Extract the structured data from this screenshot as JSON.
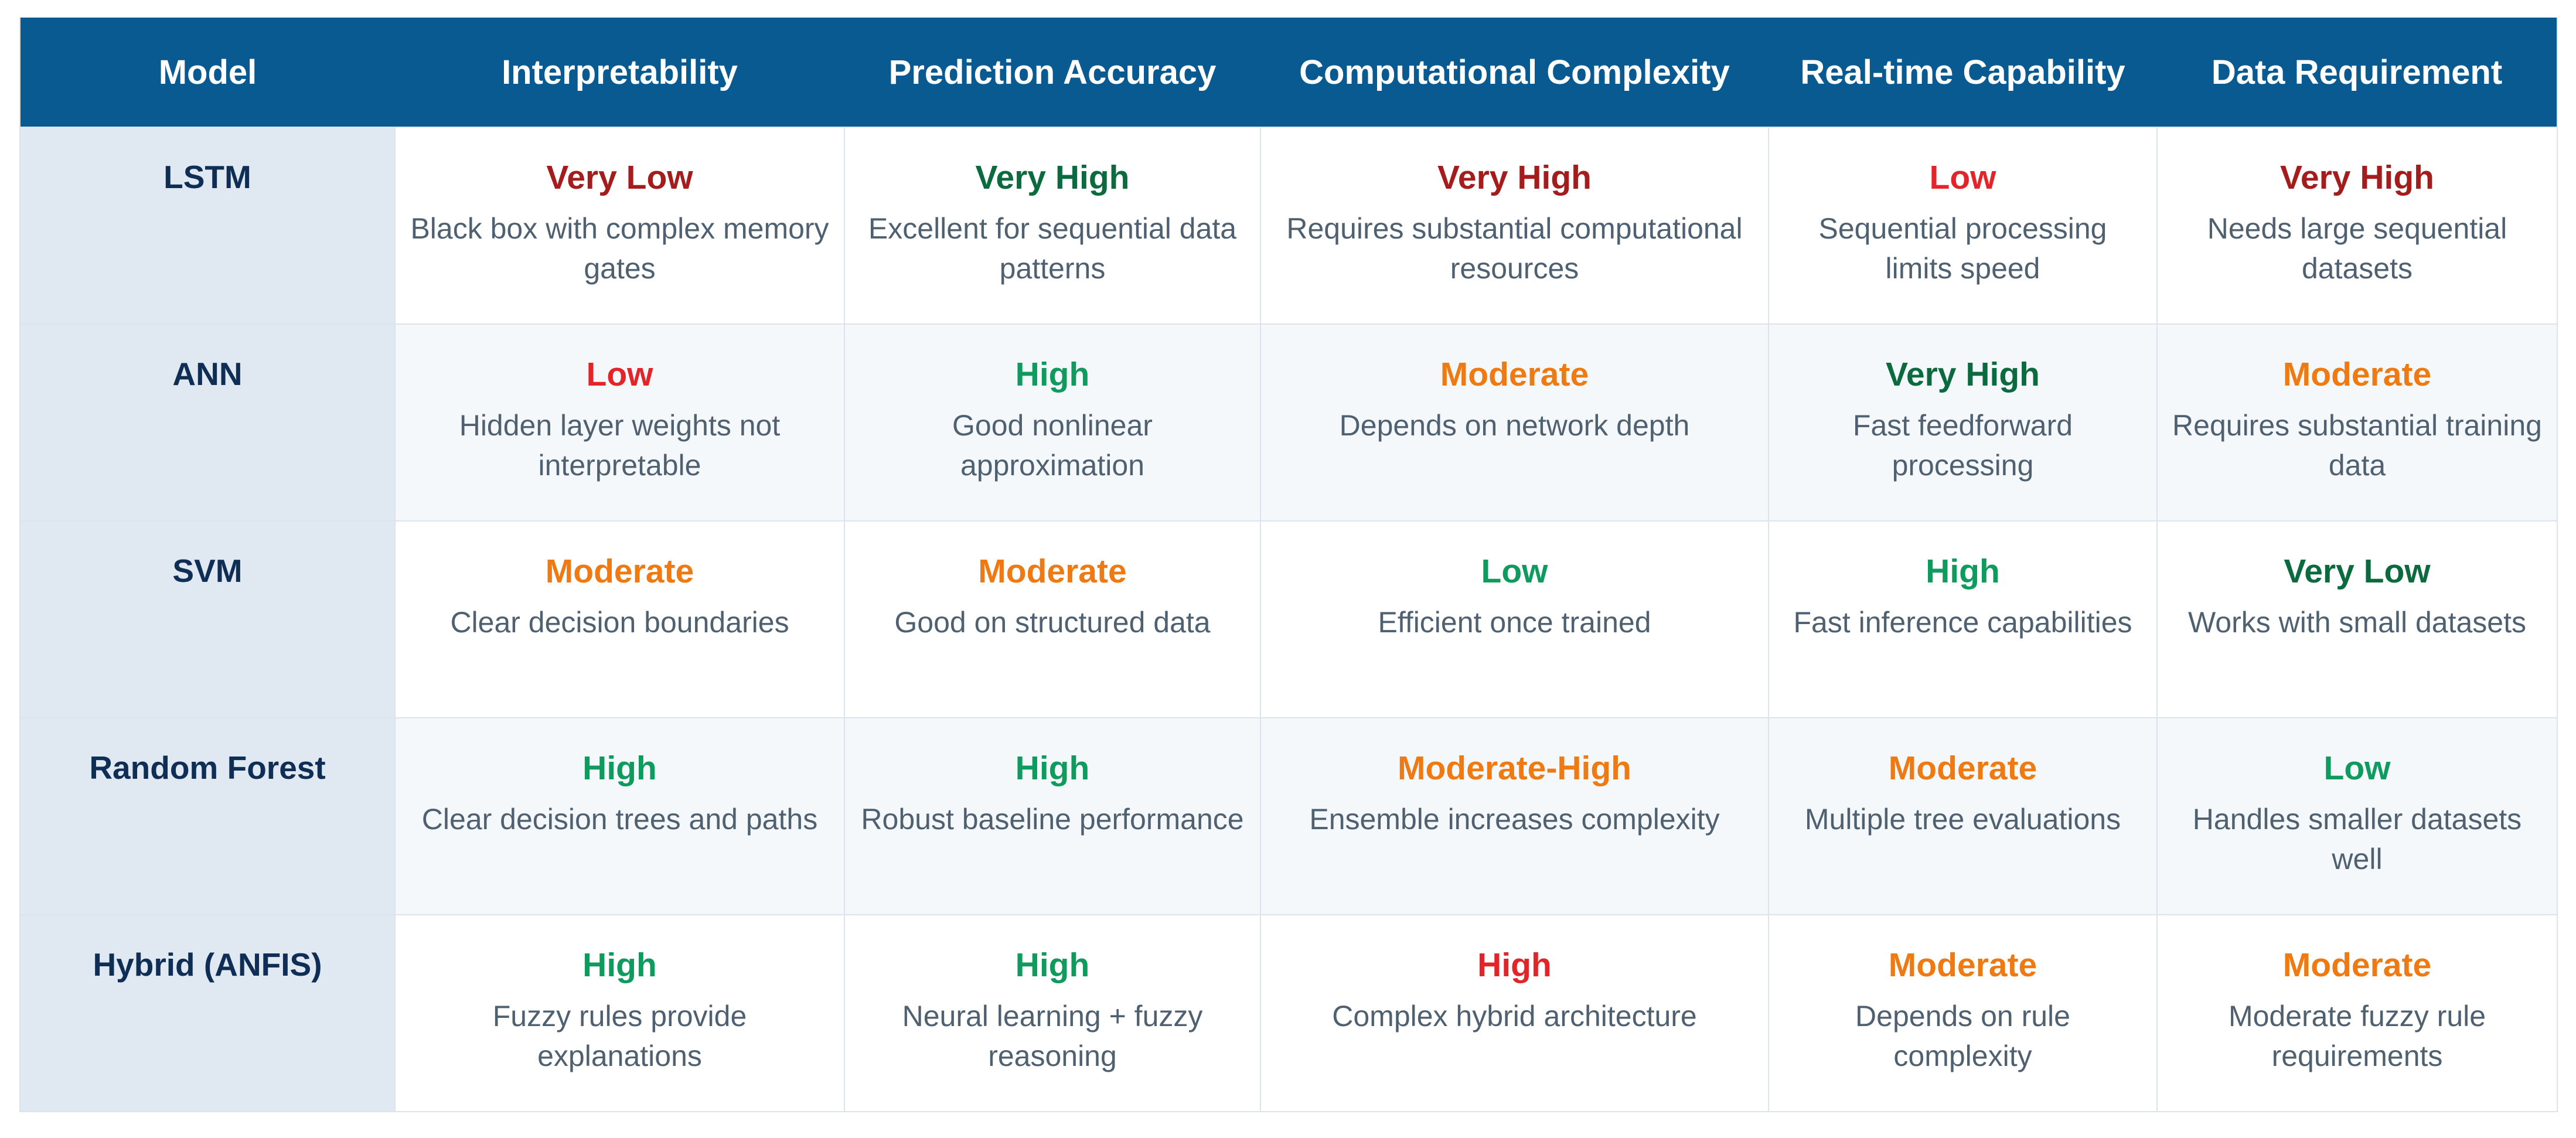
{
  "colors": {
    "header_bg": "#0a5a92",
    "model_col_bg": "#e0e8f1",
    "very_low": "#a51c1c",
    "low": "#e5242a",
    "moderate": "#f07a12",
    "moderate_high": "#f07a12",
    "high": "#0f9a5e",
    "very_high": "#0b6b3f"
  },
  "table": {
    "headers": [
      "Model",
      "Interpretability",
      "Prediction Accuracy",
      "Computational Complexity",
      "Real-time Capability",
      "Data Requirement"
    ],
    "rows": [
      {
        "model": "LSTM",
        "cells": [
          {
            "rating": "Very Low",
            "color": "#a51c1c",
            "desc": "Black box with complex memory gates"
          },
          {
            "rating": "Very High",
            "color": "#0b6b3f",
            "desc": "Excellent for sequential data patterns"
          },
          {
            "rating": "Very High",
            "color": "#a51c1c",
            "desc": "Requires substantial computational resources"
          },
          {
            "rating": "Low",
            "color": "#e5242a",
            "desc": "Sequential processing limits speed"
          },
          {
            "rating": "Very High",
            "color": "#a51c1c",
            "desc": "Needs large sequential datasets"
          }
        ]
      },
      {
        "model": "ANN",
        "cells": [
          {
            "rating": "Low",
            "color": "#e5242a",
            "desc": "Hidden layer weights not interpretable"
          },
          {
            "rating": "High",
            "color": "#0f9a5e",
            "desc": "Good nonlinear approximation"
          },
          {
            "rating": "Moderate",
            "color": "#f07a12",
            "desc": "Depends on network depth"
          },
          {
            "rating": "Very High",
            "color": "#0b6b3f",
            "desc": "Fast feedforward processing"
          },
          {
            "rating": "Moderate",
            "color": "#f07a12",
            "desc": "Requires substantial training data"
          }
        ]
      },
      {
        "model": "SVM",
        "cells": [
          {
            "rating": "Moderate",
            "color": "#f07a12",
            "desc": "Clear decision boundaries"
          },
          {
            "rating": "Moderate",
            "color": "#f07a12",
            "desc": "Good on structured data"
          },
          {
            "rating": "Low",
            "color": "#0f9a5e",
            "desc": "Efficient once trained"
          },
          {
            "rating": "High",
            "color": "#0f9a5e",
            "desc": "Fast inference capabilities"
          },
          {
            "rating": "Very Low",
            "color": "#0b6b3f",
            "desc": "Works with small datasets"
          }
        ]
      },
      {
        "model": "Random Forest",
        "cells": [
          {
            "rating": "High",
            "color": "#0f9a5e",
            "desc": "Clear decision trees and paths"
          },
          {
            "rating": "High",
            "color": "#0f9a5e",
            "desc": "Robust baseline performance"
          },
          {
            "rating": "Moderate-High",
            "color": "#f07a12",
            "desc": "Ensemble increases complexity"
          },
          {
            "rating": "Moderate",
            "color": "#f07a12",
            "desc": "Multiple tree evaluations"
          },
          {
            "rating": "Low",
            "color": "#0f9a5e",
            "desc": "Handles smaller datasets well"
          }
        ]
      },
      {
        "model": "Hybrid (ANFIS)",
        "cells": [
          {
            "rating": "High",
            "color": "#0f9a5e",
            "desc": "Fuzzy rules provide explanations"
          },
          {
            "rating": "High",
            "color": "#0f9a5e",
            "desc": "Neural learning + fuzzy reasoning"
          },
          {
            "rating": "High",
            "color": "#e5242a",
            "desc": "Complex hybrid architecture"
          },
          {
            "rating": "Moderate",
            "color": "#f07a12",
            "desc": "Depends on rule complexity"
          },
          {
            "rating": "Moderate",
            "color": "#f07a12",
            "desc": "Moderate fuzzy rule requirements"
          }
        ]
      }
    ]
  }
}
